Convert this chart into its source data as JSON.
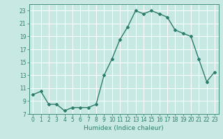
{
  "x": [
    0,
    1,
    2,
    3,
    4,
    5,
    6,
    7,
    8,
    9,
    10,
    11,
    12,
    13,
    14,
    15,
    16,
    17,
    18,
    19,
    20,
    21,
    22,
    23
  ],
  "y": [
    10,
    10.5,
    8.5,
    8.5,
    7.5,
    8,
    8,
    8,
    8.5,
    13,
    15.5,
    18.5,
    20.5,
    23,
    22.5,
    23,
    22.5,
    22,
    20,
    19.5,
    19,
    15.5,
    12,
    13.5
  ],
  "line_color": "#2d7d6b",
  "marker": "D",
  "marker_size": 2,
  "bg_color": "#c8e8e4",
  "grid_color": "#ffffff",
  "tick_color": "#2d7d6b",
  "xlabel": "Humidex (Indice chaleur)",
  "xlim": [
    -0.5,
    23.5
  ],
  "ylim": [
    7,
    24
  ],
  "yticks": [
    7,
    9,
    11,
    13,
    15,
    17,
    19,
    21,
    23
  ],
  "xticks": [
    0,
    1,
    2,
    3,
    4,
    5,
    6,
    7,
    8,
    9,
    10,
    11,
    12,
    13,
    14,
    15,
    16,
    17,
    18,
    19,
    20,
    21,
    22,
    23
  ],
  "xlabel_fontsize": 6.5,
  "tick_fontsize": 5.5,
  "line_width": 1.0
}
